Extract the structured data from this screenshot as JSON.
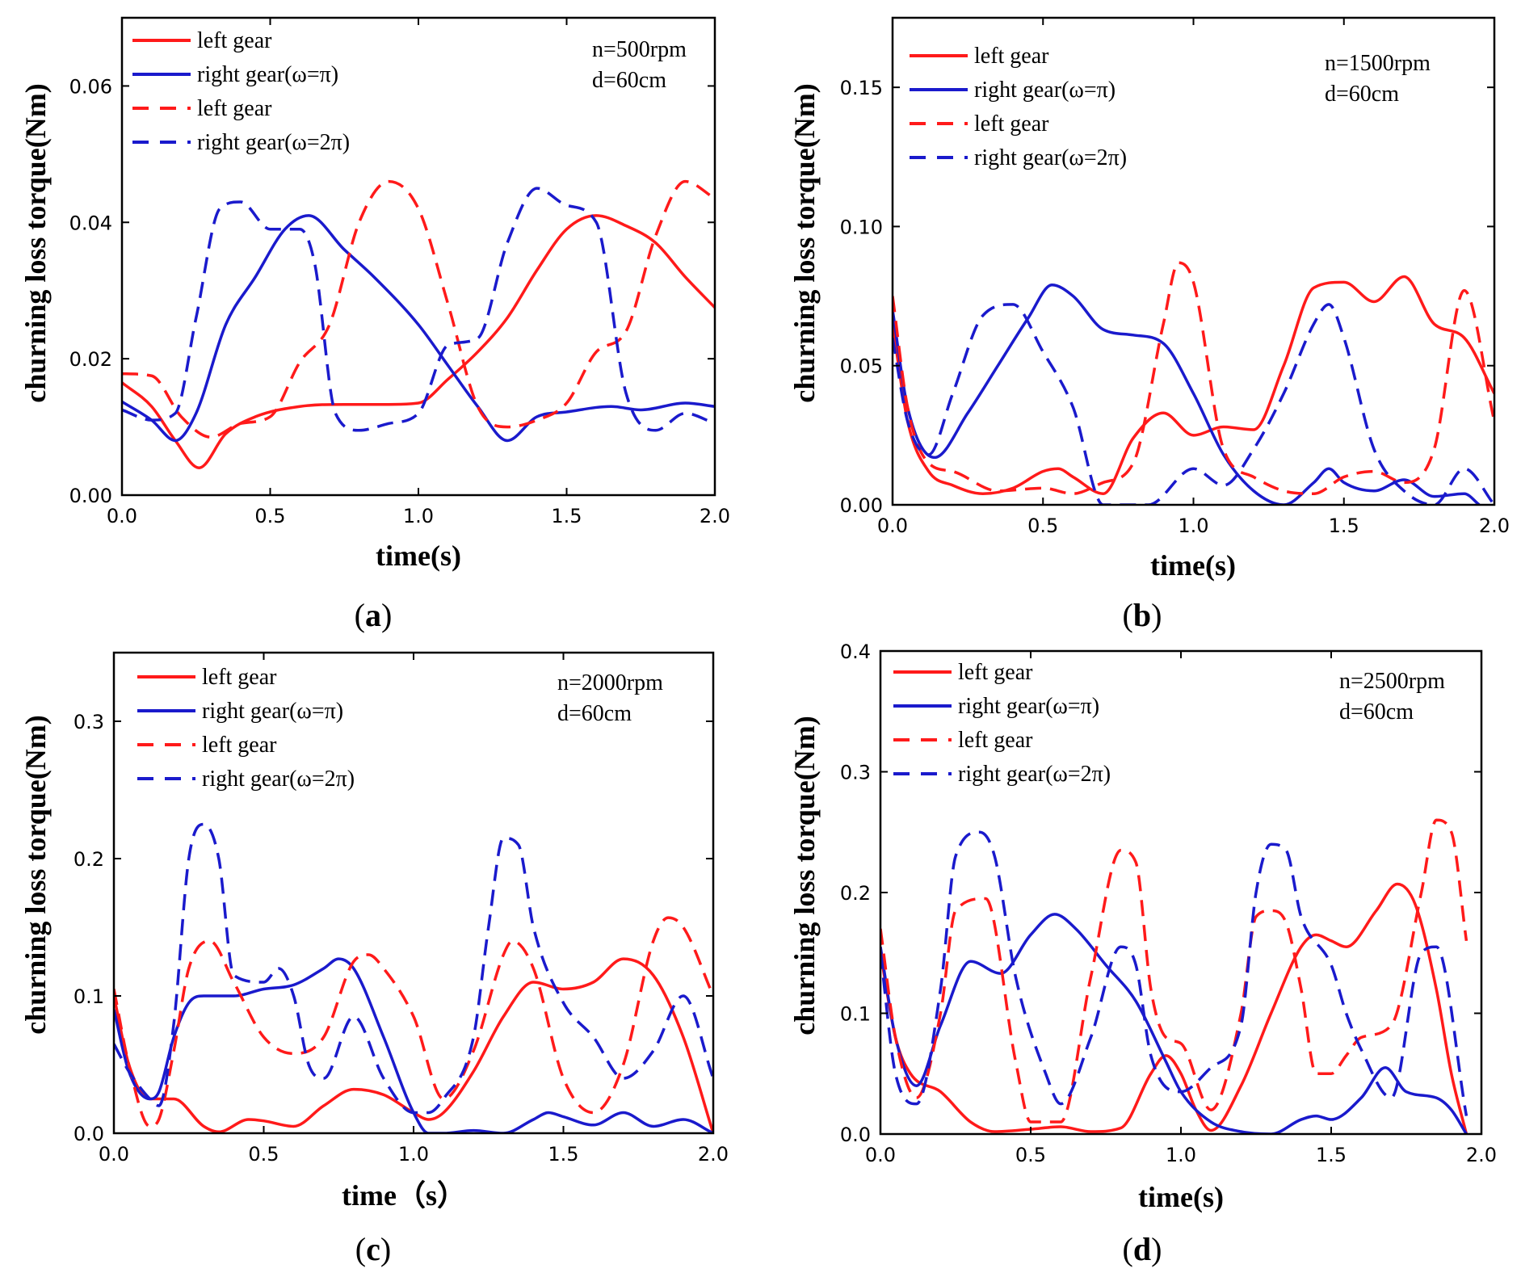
{
  "colors": {
    "left": "#ff1a1a",
    "right": "#1a1acc"
  },
  "chart_data": [
    {
      "type": "line",
      "panel_label": "a",
      "xlabel": "time(s)",
      "ylabel": "churning loss torque(Nm)",
      "xlim": [
        0,
        2
      ],
      "ylim": [
        0,
        0.07
      ],
      "xticks": [
        "0.0",
        "0.5",
        "1.0",
        "1.5",
        "2.0"
      ],
      "xtick_values": [
        0,
        0.5,
        1.0,
        1.5,
        2.0
      ],
      "yticks": [
        "0.00",
        "0.02",
        "0.04",
        "0.06"
      ],
      "ytick_values": [
        0,
        0.02,
        0.04,
        0.06
      ],
      "annotation": [
        "n=500rpm",
        "d=60cm"
      ],
      "series": [
        {
          "name": "left gear",
          "style": "solid",
          "color": "left",
          "x": [
            0,
            0.1,
            0.18,
            0.26,
            0.35,
            0.45,
            0.6,
            0.75,
            0.9,
            1.0,
            1.1,
            1.2,
            1.3,
            1.4,
            1.5,
            1.6,
            1.7,
            1.8,
            1.9,
            2.0
          ],
          "y": [
            0.0165,
            0.013,
            0.008,
            0.004,
            0.009,
            0.0115,
            0.013,
            0.0133,
            0.0133,
            0.0135,
            0.017,
            0.021,
            0.026,
            0.033,
            0.039,
            0.041,
            0.0395,
            0.037,
            0.032,
            0.0275
          ]
        },
        {
          "name": "right gear(ω=π)",
          "style": "solid",
          "color": "right",
          "x": [
            0,
            0.1,
            0.18,
            0.25,
            0.35,
            0.45,
            0.55,
            0.63,
            0.75,
            0.85,
            1.0,
            1.1,
            1.2,
            1.3,
            1.4,
            1.5,
            1.65,
            1.75,
            1.9,
            2.0
          ],
          "y": [
            0.0137,
            0.011,
            0.008,
            0.012,
            0.025,
            0.032,
            0.039,
            0.041,
            0.036,
            0.032,
            0.025,
            0.019,
            0.013,
            0.008,
            0.0115,
            0.0122,
            0.013,
            0.0125,
            0.0135,
            0.013
          ]
        },
        {
          "name": "left gear",
          "style": "dashed",
          "color": "left",
          "x": [
            0,
            0.1,
            0.2,
            0.3,
            0.4,
            0.5,
            0.6,
            0.7,
            0.8,
            0.9,
            1.0,
            1.1,
            1.2,
            1.3,
            1.4,
            1.5,
            1.6,
            1.7,
            1.8,
            1.9,
            2.0
          ],
          "y": [
            0.0178,
            0.0175,
            0.0115,
            0.0085,
            0.0105,
            0.0115,
            0.0195,
            0.025,
            0.04,
            0.046,
            0.042,
            0.028,
            0.013,
            0.01,
            0.011,
            0.0135,
            0.021,
            0.024,
            0.038,
            0.046,
            0.0435
          ]
        },
        {
          "name": "right gear(ω=2π)",
          "style": "dashed",
          "color": "right",
          "x": [
            0,
            0.1,
            0.18,
            0.25,
            0.33,
            0.4,
            0.5,
            0.6,
            0.65,
            0.72,
            0.8,
            0.9,
            1.0,
            1.1,
            1.2,
            1.3,
            1.4,
            1.5,
            1.6,
            1.7,
            1.8,
            1.9,
            2.0
          ],
          "y": [
            0.0125,
            0.011,
            0.012,
            0.026,
            0.042,
            0.043,
            0.039,
            0.039,
            0.034,
            0.012,
            0.0095,
            0.0105,
            0.012,
            0.022,
            0.023,
            0.037,
            0.045,
            0.0425,
            0.04,
            0.015,
            0.0095,
            0.012,
            0.0105
          ]
        }
      ]
    },
    {
      "type": "line",
      "panel_label": "b",
      "xlabel": "time(s)",
      "ylabel": "churning loss torque(Nm)",
      "xlim": [
        0,
        2
      ],
      "ylim": [
        0,
        0.175
      ],
      "xticks": [
        "0.0",
        "0.5",
        "1.0",
        "1.5",
        "2.0"
      ],
      "xtick_values": [
        0,
        0.5,
        1.0,
        1.5,
        2.0
      ],
      "yticks": [
        "0.00",
        "0.05",
        "0.10",
        "0.15"
      ],
      "ytick_values": [
        0,
        0.05,
        0.1,
        0.15
      ],
      "annotation": [
        "n=1500rpm",
        "d=60cm"
      ],
      "series": [
        {
          "name": "left gear",
          "style": "solid",
          "color": "left",
          "x": [
            0,
            0.05,
            0.12,
            0.2,
            0.3,
            0.4,
            0.5,
            0.55,
            0.6,
            0.7,
            0.8,
            0.9,
            1.0,
            1.1,
            1.2,
            1.3,
            1.4,
            1.5,
            1.6,
            1.7,
            1.8,
            1.9,
            2.0
          ],
          "y": [
            0.065,
            0.03,
            0.012,
            0.007,
            0.004,
            0.006,
            0.012,
            0.013,
            0.01,
            0.004,
            0.024,
            0.033,
            0.025,
            0.028,
            0.027,
            0.05,
            0.078,
            0.08,
            0.073,
            0.082,
            0.065,
            0.06,
            0.04
          ]
        },
        {
          "name": "right gear(ω=π)",
          "style": "solid",
          "color": "right",
          "x": [
            0,
            0.05,
            0.14,
            0.25,
            0.35,
            0.45,
            0.53,
            0.6,
            0.7,
            0.8,
            0.9,
            1.0,
            1.1,
            1.2,
            1.3,
            1.4,
            1.45,
            1.5,
            1.6,
            1.7,
            1.8,
            1.9,
            1.95
          ],
          "y": [
            0.07,
            0.035,
            0.017,
            0.033,
            0.05,
            0.067,
            0.079,
            0.075,
            0.063,
            0.061,
            0.058,
            0.04,
            0.018,
            0.005,
            0.0,
            0.008,
            0.013,
            0.008,
            0.005,
            0.009,
            0.003,
            0.004,
            0.0
          ]
        },
        {
          "name": "left gear",
          "style": "dashed",
          "color": "left",
          "x": [
            0,
            0.05,
            0.12,
            0.2,
            0.35,
            0.5,
            0.6,
            0.7,
            0.8,
            0.9,
            0.95,
            1.0,
            1.1,
            1.2,
            1.3,
            1.4,
            1.5,
            1.6,
            1.7,
            1.8,
            1.9,
            2.0
          ],
          "y": [
            0.075,
            0.035,
            0.015,
            0.012,
            0.005,
            0.006,
            0.004,
            0.008,
            0.015,
            0.065,
            0.087,
            0.08,
            0.02,
            0.01,
            0.005,
            0.004,
            0.01,
            0.012,
            0.008,
            0.02,
            0.077,
            0.03
          ]
        },
        {
          "name": "right gear(ω=2π)",
          "style": "dashed",
          "color": "right",
          "x": [
            0,
            0.05,
            0.12,
            0.2,
            0.3,
            0.4,
            0.5,
            0.6,
            0.7,
            0.75,
            0.85,
            1.0,
            1.1,
            1.2,
            1.3,
            1.4,
            1.45,
            1.5,
            1.6,
            1.7,
            1.8,
            1.9,
            2.0
          ],
          "y": [
            0.06,
            0.03,
            0.018,
            0.04,
            0.068,
            0.072,
            0.055,
            0.035,
            0.0,
            0.0,
            0.0,
            0.013,
            0.007,
            0.02,
            0.04,
            0.065,
            0.072,
            0.06,
            0.02,
            0.005,
            0.0,
            0.013,
            0.0
          ]
        }
      ]
    },
    {
      "type": "line",
      "panel_label": "c",
      "xlabel": "time（s）",
      "ylabel": "churning loss torque(Nm)",
      "xlim": [
        0,
        2
      ],
      "ylim": [
        0,
        0.35
      ],
      "xticks": [
        "0.0",
        "0.5",
        "1.0",
        "1.5",
        "2.0"
      ],
      "xtick_values": [
        0,
        0.5,
        1.0,
        1.5,
        2.0
      ],
      "yticks": [
        "0.0",
        "0.1",
        "0.2",
        "0.3"
      ],
      "ytick_values": [
        0,
        0.1,
        0.2,
        0.3
      ],
      "annotation": [
        "n=2000rpm",
        "d=60cm"
      ],
      "series": [
        {
          "name": "left gear",
          "style": "solid",
          "color": "left",
          "x": [
            0,
            0.05,
            0.12,
            0.2,
            0.3,
            0.35,
            0.45,
            0.5,
            0.6,
            0.7,
            0.8,
            0.9,
            1.0,
            1.05,
            1.1,
            1.2,
            1.3,
            1.4,
            1.5,
            1.6,
            1.7,
            1.8,
            1.9,
            2.0
          ],
          "y": [
            0.1,
            0.05,
            0.025,
            0.025,
            0.005,
            0.001,
            0.01,
            0.009,
            0.005,
            0.02,
            0.032,
            0.028,
            0.015,
            0.01,
            0.015,
            0.045,
            0.085,
            0.11,
            0.105,
            0.11,
            0.127,
            0.115,
            0.07,
            0.0
          ]
        },
        {
          "name": "right gear(ω=π)",
          "style": "solid",
          "color": "right",
          "x": [
            0,
            0.05,
            0.12,
            0.15,
            0.2,
            0.25,
            0.3,
            0.4,
            0.5,
            0.6,
            0.7,
            0.75,
            0.8,
            0.9,
            1.0,
            1.05,
            1.1,
            1.2,
            1.3,
            1.4,
            1.45,
            1.5,
            1.6,
            1.7,
            1.8,
            1.9,
            2.0
          ],
          "y": [
            0.09,
            0.045,
            0.025,
            0.03,
            0.07,
            0.095,
            0.1,
            0.1,
            0.105,
            0.108,
            0.12,
            0.127,
            0.12,
            0.07,
            0.015,
            0.0,
            0.0,
            0.002,
            0.0,
            0.01,
            0.015,
            0.012,
            0.006,
            0.015,
            0.005,
            0.01,
            0.0
          ]
        },
        {
          "name": "left gear",
          "style": "dashed",
          "color": "left",
          "x": [
            0,
            0.05,
            0.12,
            0.15,
            0.2,
            0.25,
            0.32,
            0.4,
            0.5,
            0.6,
            0.7,
            0.8,
            0.85,
            0.9,
            1.0,
            1.1,
            1.2,
            1.3,
            1.33,
            1.4,
            1.5,
            1.6,
            1.7,
            1.8,
            1.85,
            1.9,
            2.0
          ],
          "y": [
            0.105,
            0.05,
            0.005,
            0.01,
            0.06,
            0.12,
            0.14,
            0.11,
            0.07,
            0.058,
            0.07,
            0.125,
            0.13,
            0.12,
            0.085,
            0.025,
            0.06,
            0.13,
            0.14,
            0.12,
            0.04,
            0.015,
            0.05,
            0.14,
            0.157,
            0.15,
            0.1
          ]
        },
        {
          "name": "right gear(ω=2π)",
          "style": "dashed",
          "color": "right",
          "x": [
            0,
            0.05,
            0.12,
            0.15,
            0.2,
            0.25,
            0.3,
            0.35,
            0.4,
            0.5,
            0.55,
            0.6,
            0.65,
            0.7,
            0.8,
            0.9,
            1.0,
            1.05,
            1.1,
            1.2,
            1.25,
            1.3,
            1.35,
            1.4,
            1.5,
            1.6,
            1.7,
            1.8,
            1.9,
            2.0
          ],
          "y": [
            0.065,
            0.045,
            0.025,
            0.02,
            0.08,
            0.2,
            0.225,
            0.2,
            0.115,
            0.11,
            0.12,
            0.1,
            0.05,
            0.04,
            0.085,
            0.04,
            0.015,
            0.015,
            0.025,
            0.07,
            0.15,
            0.215,
            0.21,
            0.15,
            0.095,
            0.07,
            0.04,
            0.06,
            0.1,
            0.04
          ]
        }
      ]
    },
    {
      "type": "line",
      "panel_label": "d",
      "xlabel": "time(s)",
      "ylabel": "churning loss torque(Nm)",
      "xlim": [
        0,
        2
      ],
      "ylim": [
        0,
        0.4
      ],
      "xticks": [
        "0.0",
        "0.5",
        "1.0",
        "1.5",
        "2.0"
      ],
      "xtick_values": [
        0,
        0.5,
        1.0,
        1.5,
        2.0
      ],
      "yticks": [
        "0.0",
        "0.1",
        "0.2",
        "0.3",
        "0.4"
      ],
      "ytick_values": [
        0,
        0.1,
        0.2,
        0.3,
        0.4
      ],
      "annotation": [
        "n=2500rpm",
        "d=60cm"
      ],
      "series": [
        {
          "name": "left gear",
          "style": "solid",
          "color": "left",
          "x": [
            0,
            0.05,
            0.1,
            0.2,
            0.3,
            0.38,
            0.5,
            0.6,
            0.7,
            0.8,
            0.9,
            0.95,
            1.0,
            1.05,
            1.1,
            1.2,
            1.3,
            1.4,
            1.45,
            1.5,
            1.55,
            1.65,
            1.72,
            1.78,
            1.85,
            1.9,
            1.95
          ],
          "y": [
            0.15,
            0.08,
            0.05,
            0.035,
            0.01,
            0.002,
            0.004,
            0.006,
            0.002,
            0.005,
            0.05,
            0.065,
            0.05,
            0.02,
            0.003,
            0.04,
            0.1,
            0.155,
            0.165,
            0.16,
            0.155,
            0.185,
            0.207,
            0.19,
            0.12,
            0.05,
            0.0
          ]
        },
        {
          "name": "right gear(ω=π)",
          "style": "solid",
          "color": "right",
          "x": [
            0,
            0.05,
            0.12,
            0.2,
            0.3,
            0.4,
            0.5,
            0.58,
            0.65,
            0.75,
            0.85,
            0.95,
            1.0,
            1.1,
            1.2,
            1.3,
            1.4,
            1.45,
            1.5,
            1.6,
            1.68,
            1.75,
            1.85,
            1.9,
            1.95
          ],
          "y": [
            0.155,
            0.08,
            0.04,
            0.09,
            0.143,
            0.133,
            0.165,
            0.182,
            0.17,
            0.14,
            0.11,
            0.06,
            0.035,
            0.01,
            0.002,
            0.0,
            0.012,
            0.015,
            0.012,
            0.03,
            0.055,
            0.035,
            0.03,
            0.02,
            0.0
          ]
        },
        {
          "name": "left gear",
          "style": "dashed",
          "color": "left",
          "x": [
            0,
            0.05,
            0.12,
            0.2,
            0.25,
            0.35,
            0.45,
            0.5,
            0.6,
            0.7,
            0.8,
            0.85,
            0.9,
            0.95,
            1.0,
            1.1,
            1.2,
            1.25,
            1.3,
            1.35,
            1.4,
            1.45,
            1.5,
            1.55,
            1.6,
            1.7,
            1.8,
            1.85,
            1.9,
            1.95
          ],
          "y": [
            0.17,
            0.08,
            0.03,
            0.1,
            0.185,
            0.195,
            0.06,
            0.01,
            0.01,
            0.13,
            0.235,
            0.225,
            0.12,
            0.08,
            0.075,
            0.02,
            0.1,
            0.18,
            0.185,
            0.175,
            0.12,
            0.05,
            0.05,
            0.065,
            0.08,
            0.09,
            0.2,
            0.26,
            0.25,
            0.16
          ]
        },
        {
          "name": "right gear(ω=2π)",
          "style": "dashed",
          "color": "right",
          "x": [
            0,
            0.05,
            0.12,
            0.2,
            0.25,
            0.33,
            0.38,
            0.45,
            0.55,
            0.6,
            0.7,
            0.8,
            0.85,
            0.9,
            1.0,
            1.1,
            1.2,
            1.25,
            1.3,
            1.35,
            1.4,
            1.5,
            1.55,
            1.6,
            1.7,
            1.8,
            1.85,
            1.95
          ],
          "y": [
            0.15,
            0.05,
            0.025,
            0.12,
            0.23,
            0.25,
            0.23,
            0.13,
            0.05,
            0.025,
            0.08,
            0.155,
            0.14,
            0.065,
            0.035,
            0.055,
            0.09,
            0.2,
            0.24,
            0.235,
            0.18,
            0.14,
            0.1,
            0.07,
            0.03,
            0.15,
            0.155,
            0.015
          ]
        }
      ]
    }
  ]
}
